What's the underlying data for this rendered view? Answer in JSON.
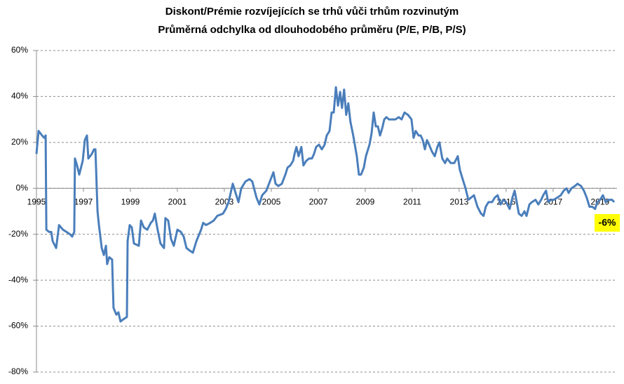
{
  "chart_data": {
    "type": "line",
    "title": "Diskont/Prémie  rozvíjejících se trhů vůči trhům  rozvinutým",
    "subtitle": "Průměrná  odchylka od dlouhodobého  průměru (P/E, P/B, P/S)",
    "annotation": "-6%",
    "color": "#4a7ebb",
    "grid": true,
    "xlim": [
      1995,
      2019.72
    ],
    "xticks": [
      1995,
      1997,
      1999,
      2001,
      2003,
      2005,
      2007,
      2009,
      2011,
      2013,
      2015,
      2017,
      2019
    ],
    "ylim": [
      -80,
      60
    ],
    "yticks": [
      {
        "value": -80,
        "label": "-80%"
      },
      {
        "value": -60,
        "label": "-60%"
      },
      {
        "value": -40,
        "label": "-40%"
      },
      {
        "value": -20,
        "label": "-20%"
      },
      {
        "value": 0,
        "label": "0%"
      },
      {
        "value": 20,
        "label": "20%"
      },
      {
        "value": 40,
        "label": "40%"
      },
      {
        "value": 60,
        "label": "60%"
      }
    ],
    "x": [
      1995.0,
      1995.09,
      1995.24,
      1995.33,
      1995.39,
      1995.42,
      1995.54,
      1995.63,
      1995.69,
      1995.84,
      1995.96,
      1996.13,
      1996.28,
      1996.43,
      1996.52,
      1996.61,
      1996.64,
      1996.73,
      1996.82,
      1996.97,
      1997.06,
      1997.15,
      1997.21,
      1997.36,
      1997.45,
      1997.51,
      1997.6,
      1997.66,
      1997.78,
      1997.87,
      1997.96,
      1998.01,
      1998.1,
      1998.22,
      1998.28,
      1998.4,
      1998.49,
      1998.58,
      1998.7,
      1998.85,
      1998.88,
      1998.97,
      1999.06,
      1999.15,
      1999.36,
      1999.45,
      1999.57,
      1999.72,
      1999.87,
      1999.96,
      2000.04,
      2000.16,
      2000.28,
      2000.43,
      2000.49,
      2000.61,
      2000.73,
      2000.85,
      2001.0,
      2001.15,
      2001.27,
      2001.39,
      2001.51,
      2001.66,
      2001.81,
      2002.01,
      2002.1,
      2002.22,
      2002.4,
      2002.55,
      2002.7,
      2002.94,
      2003.06,
      2003.18,
      2003.36,
      2003.48,
      2003.6,
      2003.72,
      2003.9,
      2004.07,
      2004.19,
      2004.37,
      2004.49,
      2004.61,
      2004.79,
      2004.94,
      2005.09,
      2005.18,
      2005.3,
      2005.45,
      2005.6,
      2005.69,
      2005.81,
      2005.93,
      2005.99,
      2006.07,
      2006.16,
      2006.28,
      2006.37,
      2006.49,
      2006.61,
      2006.73,
      2006.82,
      2006.91,
      2007.03,
      2007.15,
      2007.27,
      2007.36,
      2007.48,
      2007.57,
      2007.66,
      2007.75,
      2007.84,
      2007.93,
      2008.01,
      2008.1,
      2008.19,
      2008.28,
      2008.37,
      2008.49,
      2008.64,
      2008.73,
      2008.82,
      2008.94,
      2009.03,
      2009.18,
      2009.27,
      2009.36,
      2009.45,
      2009.54,
      2009.63,
      2009.72,
      2009.81,
      2009.9,
      2010.01,
      2010.16,
      2010.28,
      2010.43,
      2010.55,
      2010.67,
      2010.82,
      2010.97,
      2011.06,
      2011.15,
      2011.27,
      2011.36,
      2011.45,
      2011.54,
      2011.63,
      2011.72,
      2011.84,
      2011.96,
      2012.07,
      2012.16,
      2012.28,
      2012.4,
      2012.49,
      2012.64,
      2012.79,
      2012.94,
      2013.03,
      2013.15,
      2013.27,
      2013.39,
      2013.51,
      2013.63,
      2013.78,
      2013.93,
      2014.04,
      2014.13,
      2014.25,
      2014.4,
      2014.52,
      2014.64,
      2014.76,
      2014.88,
      2015.0,
      2015.15,
      2015.27,
      2015.36,
      2015.45,
      2015.54,
      2015.66,
      2015.78,
      2015.87,
      2015.99,
      2016.1,
      2016.25,
      2016.37,
      2016.49,
      2016.58,
      2016.7,
      2016.79,
      2016.91,
      2017.03,
      2017.18,
      2017.33,
      2017.45,
      2017.57,
      2017.66,
      2017.78,
      2017.93,
      2018.04,
      2018.19,
      2018.31,
      2018.43,
      2018.55,
      2018.67,
      2018.79,
      2018.88,
      2019.0,
      2019.12,
      2019.24,
      2019.36,
      2019.51,
      2019.6
    ],
    "values": [
      15,
      25,
      23,
      22,
      23,
      -18,
      -19,
      -19,
      -23,
      -26,
      -16,
      -18,
      -19,
      -20,
      -21,
      -19,
      13,
      10,
      6,
      12,
      21,
      23,
      13,
      15,
      17,
      17,
      -10,
      -16,
      -26,
      -29,
      -25,
      -33,
      -30,
      -31,
      -52,
      -55,
      -54,
      -58,
      -57,
      -56,
      -23,
      -16,
      -17,
      -24,
      -25,
      -14,
      -17,
      -18,
      -15,
      -14,
      -11,
      -18,
      -24,
      -26,
      -13,
      -14,
      -22,
      -25,
      -18,
      -19,
      -21,
      -26,
      -27,
      -28,
      -23,
      -18,
      -15,
      -16,
      -15,
      -14,
      -12,
      -11,
      -9,
      -6,
      2,
      -2,
      -6,
      0,
      3,
      4,
      3,
      -4,
      -7,
      -3,
      -1,
      3,
      7,
      2,
      1,
      2,
      6,
      9,
      10,
      12,
      15,
      18,
      14,
      18,
      10,
      12,
      13,
      13,
      15,
      18,
      19,
      17,
      19,
      23,
      25,
      33,
      33,
      44,
      36,
      42,
      35,
      43,
      32,
      37,
      29,
      23,
      14,
      6,
      6,
      9,
      14,
      19,
      24,
      33,
      27,
      27,
      23,
      26,
      30,
      31,
      30,
      30,
      30,
      31,
      30,
      33,
      32,
      30,
      22,
      25,
      23,
      23,
      21,
      17,
      21,
      19,
      16,
      14,
      18,
      20,
      13,
      11,
      13,
      11,
      11,
      14,
      8,
      4,
      0,
      -5,
      -4,
      -3,
      -8,
      -11,
      -12,
      -8,
      -6,
      -6,
      -4,
      -3,
      -7,
      -5,
      -6,
      -9,
      -4,
      -1,
      -6,
      -11,
      -12,
      -10,
      -12,
      -7,
      -6,
      -5,
      -7,
      -5,
      -3,
      -1,
      -6,
      -5,
      -5,
      -4,
      -3,
      -1,
      0,
      -2,
      0,
      1,
      2,
      1,
      -1,
      -4,
      -8,
      -8,
      -9,
      -6,
      -5,
      -3,
      -6,
      -5,
      -5,
      -6
    ]
  }
}
